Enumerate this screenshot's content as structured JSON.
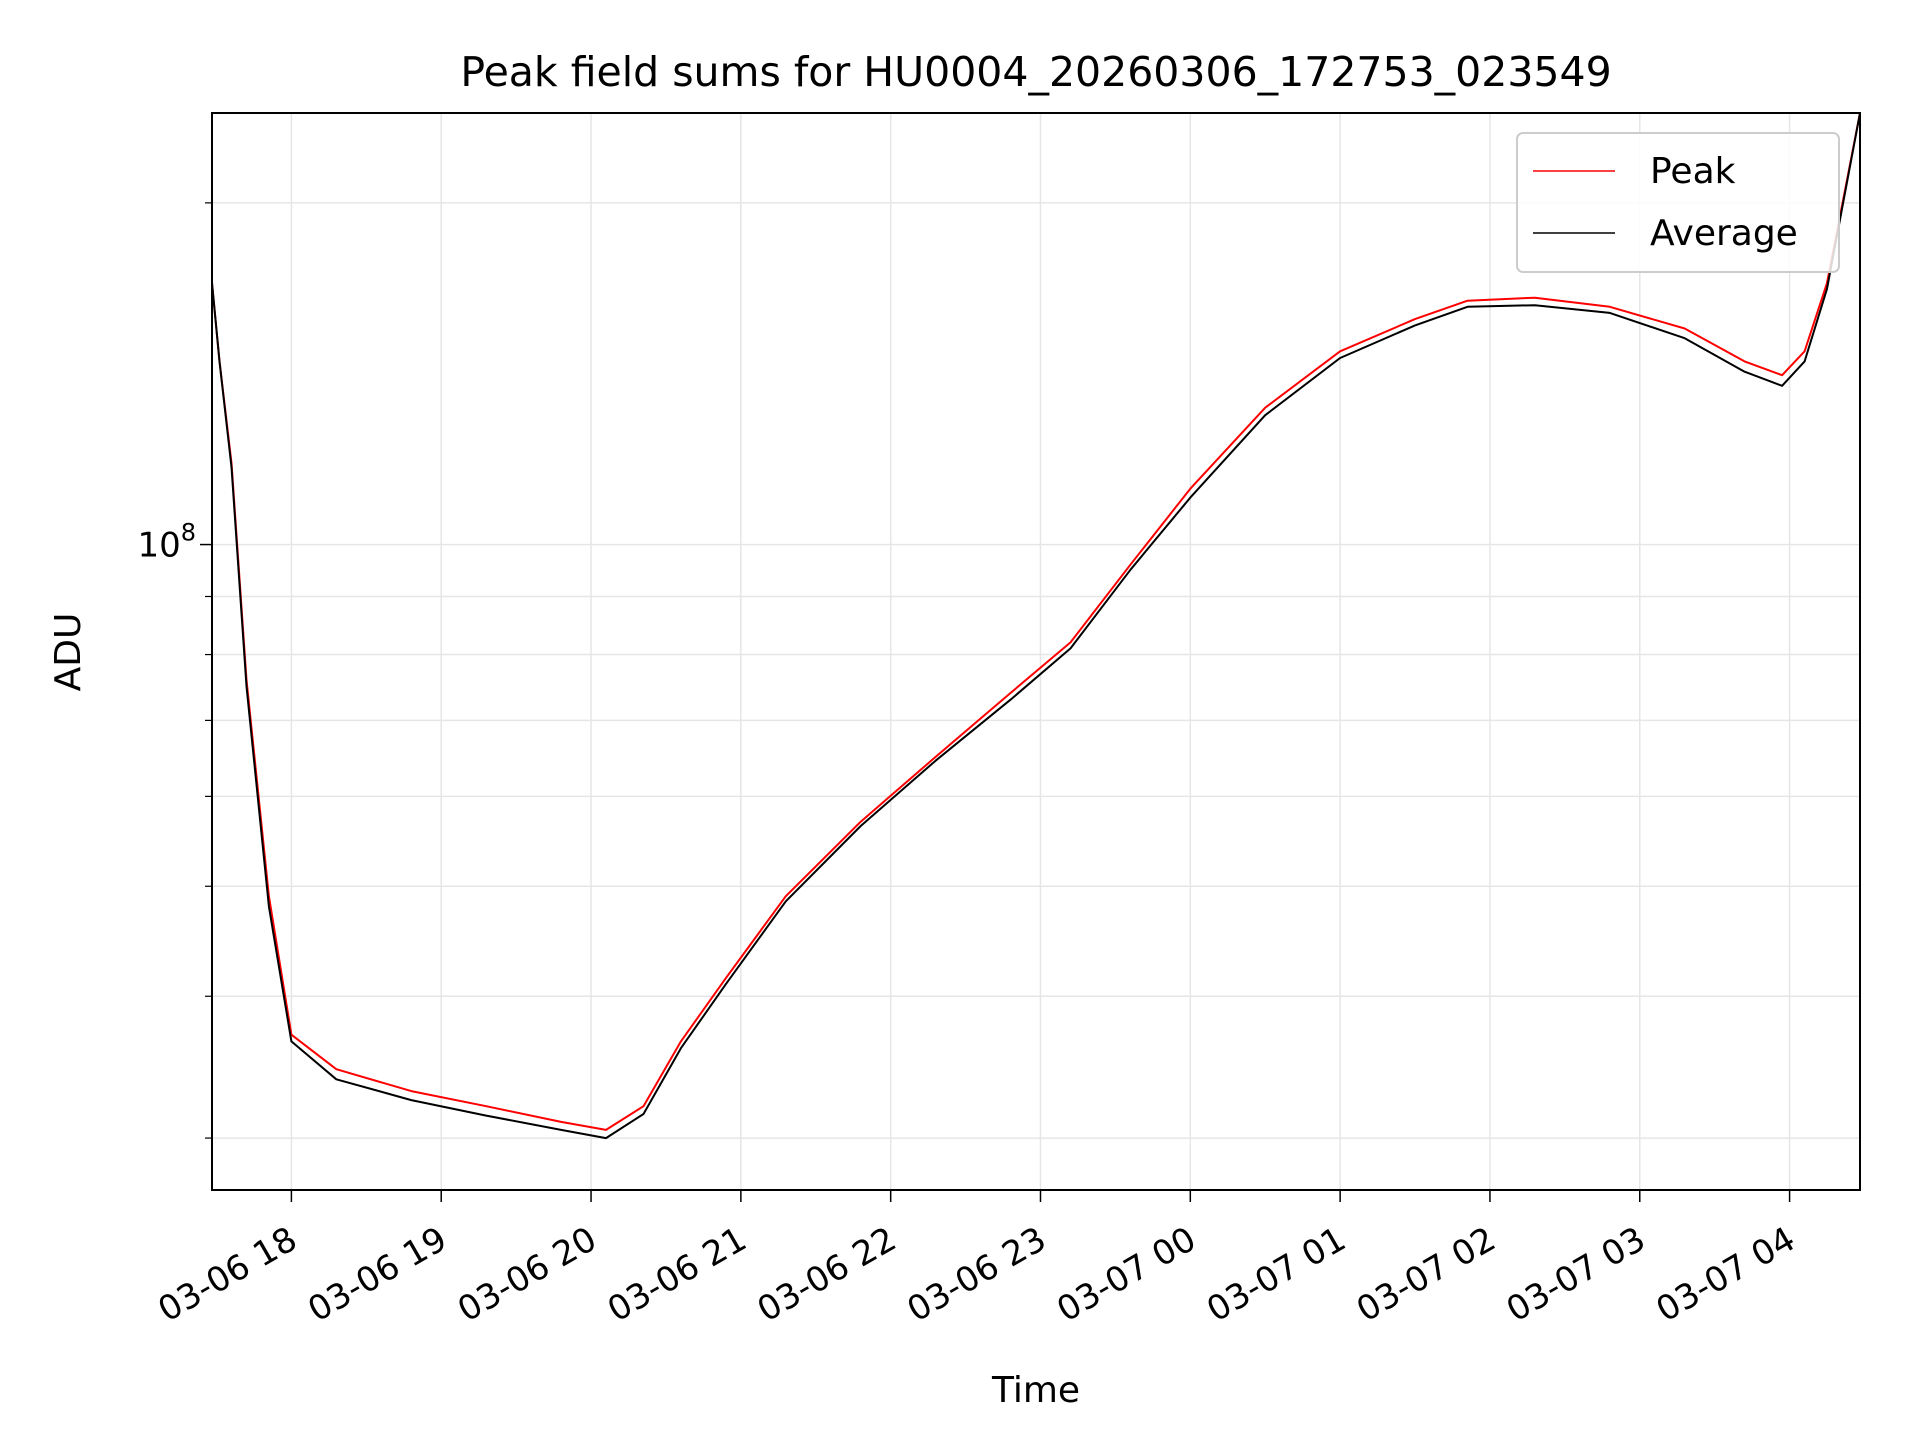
{
  "chart_data": {
    "type": "line",
    "title": "Peak field sums for HU0004_20260306_172753_023549",
    "xlabel": "Time",
    "ylabel": "ADU",
    "yscale": "log",
    "ylim": [
      27000000,
      240000000
    ],
    "xlim_hours": [
      17.47,
      4.47
    ],
    "x_ticks": [
      {
        "label": "03-06 18",
        "hour": 18
      },
      {
        "label": "03-06 19",
        "hour": 19
      },
      {
        "label": "03-06 20",
        "hour": 20
      },
      {
        "label": "03-06 21",
        "hour": 21
      },
      {
        "label": "03-06 22",
        "hour": 22
      },
      {
        "label": "03-06 23",
        "hour": 23
      },
      {
        "label": "03-07 00",
        "hour": 24
      },
      {
        "label": "03-07 01",
        "hour": 25
      },
      {
        "label": "03-07 02",
        "hour": 26
      },
      {
        "label": "03-07 03",
        "hour": 27
      },
      {
        "label": "03-07 04",
        "hour": 28
      }
    ],
    "y_major_ticks": [
      {
        "label_base": "10",
        "label_exp": "8",
        "value": 100000000
      }
    ],
    "y_minor_ticks": [
      30000000,
      40000000,
      50000000,
      60000000,
      70000000,
      80000000,
      90000000,
      200000000
    ],
    "grid": true,
    "legend_position": "upper right",
    "series": [
      {
        "name": "Peak",
        "color": "#ff0000",
        "x": [
          17.47,
          17.52,
          17.6,
          17.7,
          17.85,
          18.0,
          18.3,
          18.8,
          19.3,
          19.8,
          20.1,
          20.35,
          20.6,
          20.9,
          21.3,
          21.8,
          22.3,
          22.8,
          23.2,
          23.6,
          24.0,
          24.5,
          25.0,
          25.5,
          25.85,
          26.3,
          26.8,
          27.3,
          27.7,
          27.95,
          28.1,
          28.25,
          28.47
        ],
        "values": [
          170000000,
          145000000,
          118000000,
          76000000,
          49000000,
          37000000,
          34500000,
          33000000,
          32000000,
          31000000,
          30500000,
          32000000,
          36500000,
          41500000,
          49000000,
          57000000,
          65000000,
          74000000,
          82000000,
          96000000,
          112000000,
          132000000,
          148000000,
          158000000,
          164000000,
          165000000,
          162000000,
          155000000,
          145000000,
          141000000,
          148000000,
          170000000,
          240000000
        ]
      },
      {
        "name": "Average",
        "color": "#000000",
        "x": [
          17.47,
          17.52,
          17.6,
          17.7,
          17.85,
          18.0,
          18.3,
          18.8,
          19.3,
          19.8,
          20.1,
          20.35,
          20.6,
          20.9,
          21.3,
          21.8,
          22.3,
          22.8,
          23.2,
          23.6,
          24.0,
          24.5,
          25.0,
          25.5,
          25.85,
          26.3,
          26.8,
          27.3,
          27.7,
          27.95,
          28.1,
          28.25,
          28.47
        ],
        "values": [
          170000000,
          145000000,
          117000000,
          75000000,
          48000000,
          36500000,
          33800000,
          32400000,
          31400000,
          30500000,
          30000000,
          31500000,
          36000000,
          41000000,
          48500000,
          56500000,
          64500000,
          73000000,
          81000000,
          95000000,
          110000000,
          130000000,
          146000000,
          156000000,
          162000000,
          162500000,
          160000000,
          152000000,
          142000000,
          138000000,
          145000000,
          168000000,
          240000000
        ]
      }
    ]
  }
}
